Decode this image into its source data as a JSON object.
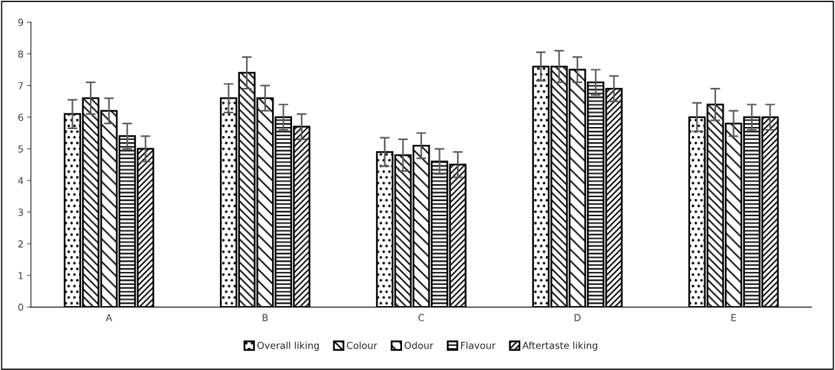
{
  "chart_data": {
    "type": "bar",
    "categories": [
      "A",
      "B",
      "C",
      "D",
      "E"
    ],
    "series": [
      {
        "name": "Overall liking",
        "color": "#000000",
        "values": [
          6.1,
          6.6,
          4.9,
          7.6,
          6.0
        ],
        "errors": [
          0.45,
          0.45,
          0.45,
          0.45,
          0.45
        ]
      },
      {
        "name": "Colour",
        "color": "#000000",
        "values": [
          6.6,
          7.4,
          4.8,
          7.6,
          6.4
        ],
        "errors": [
          0.5,
          0.5,
          0.5,
          0.5,
          0.5
        ]
      },
      {
        "name": "Odour",
        "color": "#000000",
        "values": [
          6.2,
          6.6,
          5.1,
          7.5,
          5.8
        ],
        "errors": [
          0.4,
          0.4,
          0.4,
          0.4,
          0.4
        ]
      },
      {
        "name": "Flavour",
        "color": "#000000",
        "values": [
          5.4,
          6.0,
          4.6,
          7.1,
          6.0
        ],
        "errors": [
          0.4,
          0.4,
          0.4,
          0.4,
          0.4
        ]
      },
      {
        "name": "Aftertaste liking",
        "color": "#000000",
        "values": [
          5.0,
          5.7,
          4.5,
          6.9,
          6.0
        ],
        "errors": [
          0.4,
          0.4,
          0.4,
          0.4,
          0.4
        ]
      }
    ],
    "ylim": [
      0,
      9
    ],
    "yticks": [
      0,
      1,
      2,
      3,
      4,
      5,
      6,
      7,
      8,
      9
    ],
    "grid": false,
    "legend": "bottom"
  }
}
